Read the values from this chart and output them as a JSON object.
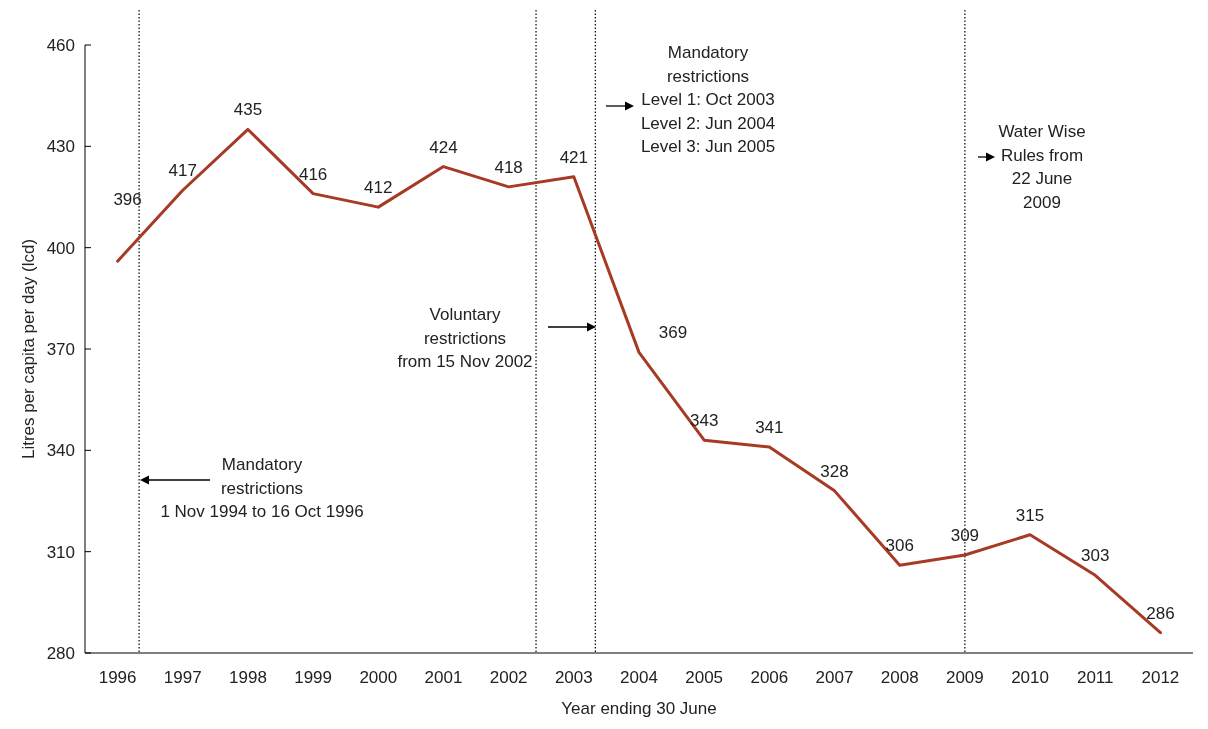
{
  "chart_data": {
    "type": "line",
    "xlabel": "Year ending 30 June",
    "ylabel": "Litres per capita per day (lcd)",
    "x": [
      1996,
      1997,
      1998,
      1999,
      2000,
      2001,
      2002,
      2003,
      2004,
      2005,
      2006,
      2007,
      2008,
      2009,
      2010,
      2011,
      2012
    ],
    "series": [
      {
        "color": "#a63a24",
        "values": [
          396,
          417,
          435,
          416,
          412,
          424,
          418,
          421,
          369,
          343,
          341,
          328,
          306,
          309,
          315,
          303,
          286
        ]
      }
    ],
    "data_labels": true,
    "marker": "none",
    "line_style": "solid",
    "grid": false,
    "xlim": [
      1995.5,
      2012.5
    ],
    "xticks": [
      1996,
      1997,
      1998,
      1999,
      2000,
      2001,
      2002,
      2003,
      2004,
      2005,
      2006,
      2007,
      2008,
      2009,
      2010,
      2011,
      2012
    ],
    "ylim": [
      280,
      460
    ],
    "yticks": [
      280,
      310,
      340,
      370,
      400,
      430,
      460
    ],
    "ref_lines": [
      {
        "axis": "x",
        "value": 1996.33,
        "label": "Mandatory\nrestrictions\n1 Nov 1994 to 16 Oct 1996",
        "color": "#000000",
        "line_style": "dotted"
      },
      {
        "axis": "x",
        "value": 2002.42,
        "label": "Voluntary\nrestrictions\nfrom 15 Nov 2002",
        "color": "#000000",
        "line_style": "dotted"
      },
      {
        "axis": "x",
        "value": 2003.33,
        "label": "Mandatory\nrestrictions\nLevel 1: Oct 2003\nLevel 2: Jun 2004\nLevel 3: Jun 2005",
        "color": "#000000",
        "line_style": "dotted"
      },
      {
        "axis": "x",
        "value": 2009,
        "label": "Water Wise\nRules from\n22 June\n2009",
        "color": "#000000",
        "line_style": "dotted"
      }
    ]
  }
}
